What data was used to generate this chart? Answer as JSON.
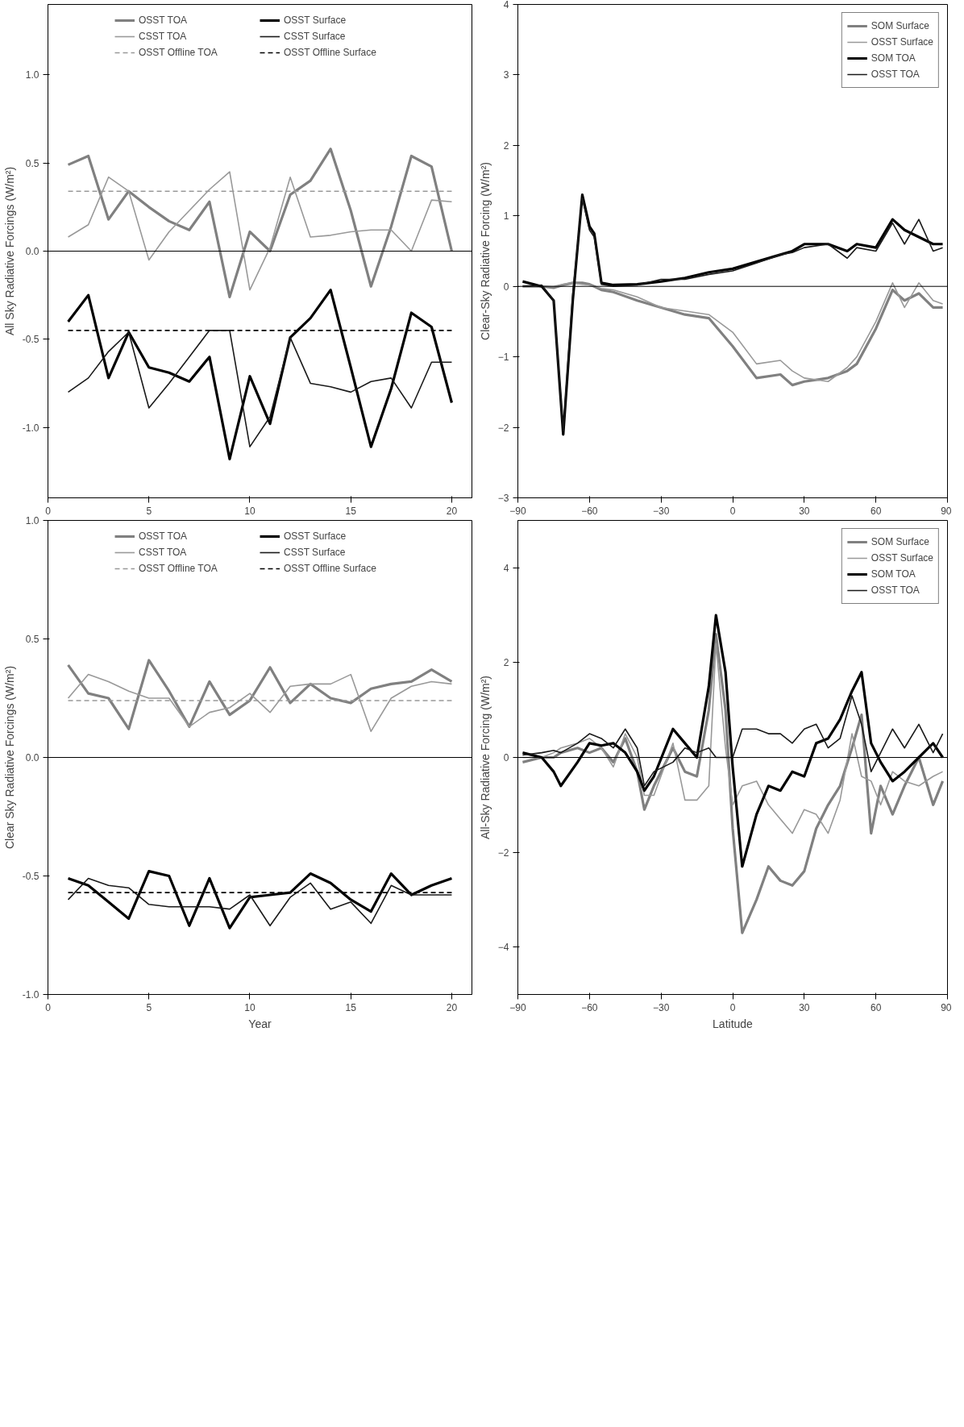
{
  "chart_data": [
    {
      "type": "line",
      "ylabel": "All Sky Radiative Forcings (W/m²)",
      "x": [
        1,
        2,
        3,
        4,
        5,
        6,
        7,
        8,
        9,
        10,
        11,
        12,
        13,
        14,
        15,
        16,
        17,
        18,
        19,
        20
      ],
      "xlim": [
        0,
        21
      ],
      "xticks": [
        0,
        5,
        10,
        15,
        20
      ],
      "ylim": [
        -1.4,
        1.4
      ],
      "yticks": [
        {
          "value": -1,
          "label": "-1.0"
        },
        {
          "value": -0.5,
          "label": "-0.5"
        },
        {
          "value": 0,
          "label": "0.0"
        },
        {
          "value": 0.5,
          "label": "0.5"
        },
        {
          "value": 1,
          "label": "1.0"
        }
      ],
      "grid": false,
      "legend": "top",
      "ref_lines": [
        {
          "axis": "y",
          "value": 0,
          "color": "#000000"
        }
      ],
      "series": [
        {
          "name": "OSST TOA",
          "color": "#808080",
          "values": [
            0.49,
            0.54,
            0.18,
            0.34,
            0.25,
            0.17,
            0.12,
            0.28,
            -0.26,
            0.11,
            0.0,
            0.32,
            0.4,
            0.58,
            0.23,
            -0.2,
            0.14,
            0.54,
            0.48,
            0.0
          ]
        },
        {
          "name": "CSST TOA",
          "color": "#999999",
          "values": [
            0.08,
            0.15,
            0.42,
            0.34,
            -0.05,
            0.11,
            0.23,
            0.35,
            0.45,
            -0.22,
            0.02,
            0.42,
            0.08,
            0.09,
            0.11,
            0.12,
            0.12,
            0.0,
            0.29,
            0.28
          ]
        },
        {
          "name": "OSST Offline TOA",
          "color": "#999999",
          "line_style": "dashed",
          "values": [
            0.34,
            0.34,
            0.34,
            0.34,
            0.34,
            0.34,
            0.34,
            0.34,
            0.34,
            0.34,
            0.34,
            0.34,
            0.34,
            0.34,
            0.34,
            0.34,
            0.34,
            0.34,
            0.34,
            0.34
          ]
        },
        {
          "name": "OSST Surface",
          "color": "#000000",
          "values": [
            -0.4,
            -0.25,
            -0.72,
            -0.46,
            -0.66,
            -0.69,
            -0.74,
            -0.6,
            -1.18,
            -0.71,
            -0.98,
            -0.49,
            -0.38,
            -0.22,
            -0.66,
            -1.11,
            -0.78,
            -0.35,
            -0.43,
            -0.86
          ]
        },
        {
          "name": "CSST Surface",
          "color": "#1a1a1a",
          "values": [
            -0.8,
            -0.72,
            -0.57,
            -0.46,
            -0.89,
            -0.75,
            -0.6,
            -0.45,
            -0.45,
            -1.11,
            -0.94,
            -0.49,
            -0.75,
            -0.77,
            -0.8,
            -0.74,
            -0.72,
            -0.89,
            -0.63,
            -0.63
          ]
        },
        {
          "name": "OSST Offline Surface",
          "color": "#000000",
          "line_style": "dashed",
          "values": [
            -0.45,
            -0.45,
            -0.45,
            -0.45,
            -0.45,
            -0.45,
            -0.45,
            -0.45,
            -0.45,
            -0.45,
            -0.45,
            -0.45,
            -0.45,
            -0.45,
            -0.45,
            -0.45,
            -0.45,
            -0.45,
            -0.45,
            -0.45
          ]
        }
      ]
    },
    {
      "type": "line",
      "ylabel": "Clear-Sky Radiative Forcing (W/m²)",
      "x": [
        -88,
        -80,
        -75,
        -71,
        -67,
        -63,
        -60,
        -58,
        -55,
        -50,
        -40,
        -30,
        -20,
        -10,
        0,
        10,
        20,
        25,
        30,
        40,
        48,
        52,
        60,
        67,
        72,
        78,
        84,
        88
      ],
      "xlim": [
        -90,
        90
      ],
      "xticks": [
        -90,
        -60,
        -30,
        0,
        30,
        60,
        90
      ],
      "ylim": [
        -3,
        4
      ],
      "yticks": [
        -3,
        -2,
        -1,
        0,
        1,
        2,
        3,
        4
      ],
      "grid": false,
      "legend": "top right",
      "ref_lines": [
        {
          "axis": "y",
          "value": 0,
          "color": "#000000"
        }
      ],
      "series": [
        {
          "name": "SOM Surface",
          "color": "#808080",
          "values": [
            0.0,
            0.0,
            -0.02,
            0.02,
            0.05,
            0.05,
            0.03,
            0.0,
            -0.05,
            -0.08,
            -0.2,
            -0.3,
            -0.4,
            -0.45,
            -0.85,
            -1.3,
            -1.25,
            -1.4,
            -1.35,
            -1.3,
            -1.2,
            -1.1,
            -0.6,
            -0.05,
            -0.2,
            -0.1,
            -0.3,
            -0.3
          ]
        },
        {
          "name": "OSST Surface",
          "color": "#999999",
          "values": [
            0.0,
            0.0,
            0.0,
            0.03,
            0.05,
            0.03,
            0.02,
            0.0,
            -0.03,
            -0.05,
            -0.15,
            -0.3,
            -0.35,
            -0.4,
            -0.65,
            -1.1,
            -1.05,
            -1.2,
            -1.3,
            -1.35,
            -1.15,
            -1.0,
            -0.5,
            0.05,
            -0.3,
            0.05,
            -0.2,
            -0.25
          ]
        },
        {
          "name": "SOM TOA",
          "color": "#000000",
          "values": [
            0.07,
            0.0,
            -0.2,
            -2.1,
            -0.2,
            1.3,
            0.85,
            0.75,
            0.05,
            0.02,
            0.03,
            0.07,
            0.12,
            0.2,
            0.25,
            0.35,
            0.45,
            0.5,
            0.6,
            0.6,
            0.5,
            0.6,
            0.55,
            0.95,
            0.8,
            0.7,
            0.6,
            0.6
          ]
        },
        {
          "name": "OSST TOA",
          "color": "#1a1a1a",
          "values": [
            0.0,
            0.02,
            -0.2,
            -2.05,
            -0.1,
            1.25,
            0.8,
            0.7,
            0.03,
            0.0,
            0.02,
            0.1,
            0.1,
            0.17,
            0.22,
            0.33,
            0.45,
            0.48,
            0.55,
            0.6,
            0.4,
            0.55,
            0.5,
            0.9,
            0.6,
            0.95,
            0.5,
            0.55
          ]
        }
      ]
    },
    {
      "type": "line",
      "xlabel": "Year",
      "ylabel": "Clear Sky Radiative Forcings (W/m²)",
      "x": [
        1,
        2,
        3,
        4,
        5,
        6,
        7,
        8,
        9,
        10,
        11,
        12,
        13,
        14,
        15,
        16,
        17,
        18,
        19,
        20
      ],
      "xlim": [
        0,
        21
      ],
      "xticks": [
        0,
        5,
        10,
        15,
        20
      ],
      "ylim": [
        -1,
        1
      ],
      "yticks": [
        {
          "value": -1,
          "label": "-1.0"
        },
        {
          "value": -0.5,
          "label": "-0.5"
        },
        {
          "value": 0,
          "label": "0.0"
        },
        {
          "value": 0.5,
          "label": "0.5"
        },
        {
          "value": 1,
          "label": "1.0"
        }
      ],
      "grid": false,
      "legend": "top",
      "ref_lines": [
        {
          "axis": "y",
          "value": 0,
          "color": "#000000"
        }
      ],
      "series": [
        {
          "name": "OSST TOA",
          "color": "#808080",
          "values": [
            0.39,
            0.27,
            0.25,
            0.12,
            0.41,
            0.28,
            0.13,
            0.32,
            0.18,
            0.24,
            0.38,
            0.23,
            0.31,
            0.25,
            0.23,
            0.29,
            0.31,
            0.32,
            0.37,
            0.32
          ]
        },
        {
          "name": "CSST TOA",
          "color": "#999999",
          "values": [
            0.25,
            0.35,
            0.32,
            0.28,
            0.25,
            0.25,
            0.13,
            0.19,
            0.21,
            0.27,
            0.19,
            0.3,
            0.31,
            0.31,
            0.35,
            0.11,
            0.25,
            0.3,
            0.32,
            0.31
          ]
        },
        {
          "name": "OSST Offline TOA",
          "color": "#999999",
          "line_style": "dashed",
          "values": [
            0.24,
            0.24,
            0.24,
            0.24,
            0.24,
            0.24,
            0.24,
            0.24,
            0.24,
            0.24,
            0.24,
            0.24,
            0.24,
            0.24,
            0.24,
            0.24,
            0.24,
            0.24,
            0.24,
            0.24
          ]
        },
        {
          "name": "OSST Surface",
          "color": "#000000",
          "values": [
            -0.51,
            -0.54,
            -0.61,
            -0.68,
            -0.48,
            -0.5,
            -0.71,
            -0.51,
            -0.72,
            -0.59,
            -0.58,
            -0.57,
            -0.49,
            -0.53,
            -0.6,
            -0.65,
            -0.49,
            -0.58,
            -0.54,
            -0.51
          ]
        },
        {
          "name": "CSST Surface",
          "color": "#1a1a1a",
          "values": [
            -0.6,
            -0.51,
            -0.54,
            -0.55,
            -0.62,
            -0.63,
            -0.63,
            -0.63,
            -0.64,
            -0.58,
            -0.71,
            -0.59,
            -0.53,
            -0.64,
            -0.61,
            -0.7,
            -0.54,
            -0.58,
            -0.58,
            -0.58
          ]
        },
        {
          "name": "OSST Offline Surface",
          "color": "#000000",
          "line_style": "dashed",
          "values": [
            -0.57,
            -0.57,
            -0.57,
            -0.57,
            -0.57,
            -0.57,
            -0.57,
            -0.57,
            -0.57,
            -0.57,
            -0.57,
            -0.57,
            -0.57,
            -0.57,
            -0.57,
            -0.57,
            -0.57,
            -0.57,
            -0.57,
            -0.57
          ]
        }
      ]
    },
    {
      "type": "line",
      "xlabel": "Latitude",
      "ylabel": "All-Sky Radiative Forcing (W/m²)",
      "x": [
        -88,
        -80,
        -75,
        -72,
        -65,
        -60,
        -55,
        -50,
        -45,
        -40,
        -37,
        -33,
        -25,
        -20,
        -15,
        -10,
        -7,
        -3,
        0,
        4,
        10,
        15,
        20,
        25,
        30,
        35,
        40,
        45,
        50,
        54,
        58,
        62,
        67,
        72,
        78,
        84,
        88
      ],
      "xlim": [
        -90,
        90
      ],
      "xticks": [
        -90,
        -60,
        -30,
        0,
        30,
        60,
        90
      ],
      "ylim": [
        -5,
        5
      ],
      "yticks": [
        -4,
        -2,
        0,
        2,
        4
      ],
      "grid": false,
      "legend": "top right",
      "ref_lines": [
        {
          "axis": "y",
          "value": 0,
          "color": "#000000"
        }
      ],
      "series": [
        {
          "name": "SOM Surface",
          "color": "#808080",
          "values": [
            -0.1,
            0.0,
            0.0,
            0.1,
            0.2,
            0.1,
            0.2,
            -0.1,
            0.4,
            -0.3,
            -1.1,
            -0.6,
            0.2,
            -0.3,
            -0.4,
            1.0,
            2.6,
            1.0,
            -1.5,
            -3.7,
            -3.0,
            -2.3,
            -2.6,
            -2.7,
            -2.4,
            -1.5,
            -1.0,
            -0.6,
            0.2,
            0.9,
            -1.6,
            -0.6,
            -1.2,
            -0.6,
            0.0,
            -1.0,
            -0.5
          ]
        },
        {
          "name": "OSST Surface",
          "color": "#999999",
          "values": [
            0.0,
            0.0,
            0.1,
            0.2,
            0.3,
            0.4,
            0.2,
            -0.2,
            0.5,
            0.0,
            -0.8,
            -0.8,
            0.3,
            -0.9,
            -0.9,
            -0.6,
            2.4,
            0.2,
            -1.0,
            -0.6,
            -0.5,
            -1.0,
            -1.3,
            -1.6,
            -1.1,
            -1.2,
            -1.6,
            -0.9,
            0.5,
            -0.4,
            -0.5,
            -1.0,
            -0.3,
            -0.5,
            -0.6,
            -0.4,
            -0.3
          ]
        },
        {
          "name": "SOM TOA",
          "color": "#000000",
          "values": [
            0.1,
            0.0,
            -0.3,
            -0.6,
            -0.1,
            0.3,
            0.25,
            0.3,
            0.1,
            -0.3,
            -0.7,
            -0.4,
            0.6,
            0.3,
            0.0,
            1.5,
            3.0,
            1.8,
            -0.2,
            -2.3,
            -1.2,
            -0.6,
            -0.7,
            -0.3,
            -0.4,
            0.3,
            0.4,
            0.8,
            1.4,
            1.8,
            0.3,
            -0.1,
            -0.5,
            -0.3,
            0.0,
            0.3,
            0.0
          ]
        },
        {
          "name": "OSST TOA",
          "color": "#1a1a1a",
          "values": [
            0.05,
            0.1,
            0.15,
            0.1,
            0.3,
            0.5,
            0.4,
            0.2,
            0.6,
            0.2,
            -0.6,
            -0.3,
            -0.1,
            0.2,
            0.1,
            0.2,
            0.0,
            0.0,
            0.0,
            0.6,
            0.6,
            0.5,
            0.5,
            0.3,
            0.6,
            0.7,
            0.2,
            0.4,
            1.3,
            0.7,
            -0.3,
            0.1,
            0.6,
            0.2,
            0.7,
            0.1,
            0.5
          ]
        }
      ]
    }
  ]
}
